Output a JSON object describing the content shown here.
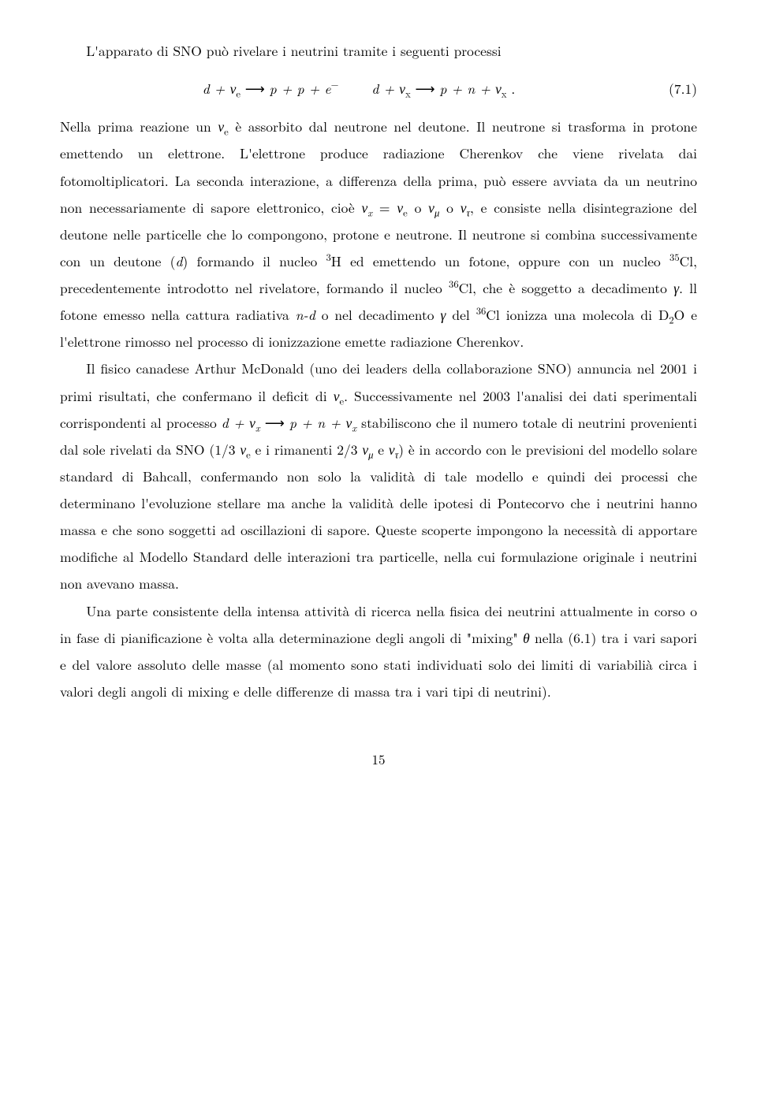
{
  "p0": "L'apparato di SNO può rivelare i neutrini tramite i seguenti processi",
  "eq": {
    "lhs1": "d + ν",
    "sub_e1": "e",
    "arrow": " ⟶ ",
    "rhs1": "p + p + e",
    "sup_minus": "−",
    "lhs2": "d + ν",
    "sub_x1": "x",
    "rhs2": "p + n + ν",
    "sub_x2": "x",
    "period": " .",
    "num": "(7.1)"
  },
  "p1a": "Nella prima reazione un ",
  "p1_nu_e": "ν",
  "p1_sub_e": "e",
  "p1b": " è assorbito dal neutrone nel deutone. Il neutrone si trasforma in protone emettendo un elettrone. L'elettrone produce radiazione Cherenkov che viene rivelata dai fotomoltiplicatori. La seconda interazione, a differenza della prima, può essere avviata da un neutrino non necessariamente di sapore elettronico, cioè ",
  "p1_nux": "ν",
  "p1_subx": "x",
  "p1_eq": " = ",
  "p1_nue2": "ν",
  "p1_sube2": "e",
  "p1_o1": " o ",
  "p1_numu": "ν",
  "p1_submu": "μ",
  "p1_o2": " o ",
  "p1_nutau": "ν",
  "p1_subtau": "τ",
  "p1c": ", e consiste nella disintegrazione del deutone nelle particelle che lo compongono, protone e neutrone. Il neutrone si combina successivamente con un deutone (",
  "p1_d": "d",
  "p1d": ") formando il nucleo ",
  "p1_sup3": "3",
  "p1_H": "H ed emettendo un fotone, oppure con un nucleo ",
  "p1_sup35": "35",
  "p1_Cl1": "Cl, precedentemente introdotto nel rivelatore, formando il nucleo ",
  "p1_sup36a": "36",
  "p1_Cl2": "Cl, che è soggetto a decadimento ",
  "p1_gamma1": "γ",
  "p1e": ". ll fotone emesso nella cattura radiativa ",
  "p1_nd": "n-d",
  "p1f": " o nel decadimento ",
  "p1_gamma2": "γ",
  "p1g": " del ",
  "p1_sup36b": "36",
  "p1_Cl3": "Cl ionizza una molecola di D",
  "p1_sub2": "2",
  "p1h": "O e l'elettrone rimosso nel processo di ionizzazione emette radiazione Cherenkov.",
  "p2a": "Il fisico canadese Arthur McDonald (uno dei leaders della collaborazione SNO) annuncia nel 2001 i primi risultati, che confermano il deficit di ",
  "p2_nue": "ν",
  "p2_sube": "e",
  "p2b": ". Successivamente nel 2003 l'analisi dei dati sperimentali corrispondenti al processo ",
  "p2_proc_l": "d + ν",
  "p2_proc_subx1": "x",
  "p2_proc_arrow": " ⟶ ",
  "p2_proc_r": "p + n + ν",
  "p2_proc_subx2": "x",
  "p2c": " stabiliscono che il numero totale di neutrini provenienti dal sole rivelati da SNO (1/3 ",
  "p2_nue2": "ν",
  "p2_sube2": "e",
  "p2d": " e i rimanenti 2/3 ",
  "p2_numu": "ν",
  "p2_submu": "μ",
  "p2e": " e ",
  "p2_nutau": "ν",
  "p2_subtau": "τ",
  "p2f": ") è in accordo con le previsioni del modello solare standard di Bahcall, confermando non solo la validità di tale modello e quindi dei processi che determinano l'evoluzione stellare ma anche la validità delle ipotesi di Pontecorvo che i neutrini hanno massa e che sono soggetti ad oscillazioni di sapore. Queste scoperte impongono la necessità di apportare modifiche al Modello Standard delle interazioni tra particelle, nella cui formulazione originale i neutrini non avevano massa.",
  "p3a": "Una parte consistente della intensa attività di ricerca nella fisica dei neutrini attualmente in corso o in fase di pianificazione è volta alla determinazione degli angoli di \"mixing\" ",
  "p3_theta": "θ",
  "p3b": " nella (6.1) tra i vari sapori e del valore assoluto delle masse (al momento sono stati individuati solo dei limiti di variabilià circa i valori degli angoli di mixing e delle differenze di massa tra i vari tipi di neutrini).",
  "page": "15"
}
